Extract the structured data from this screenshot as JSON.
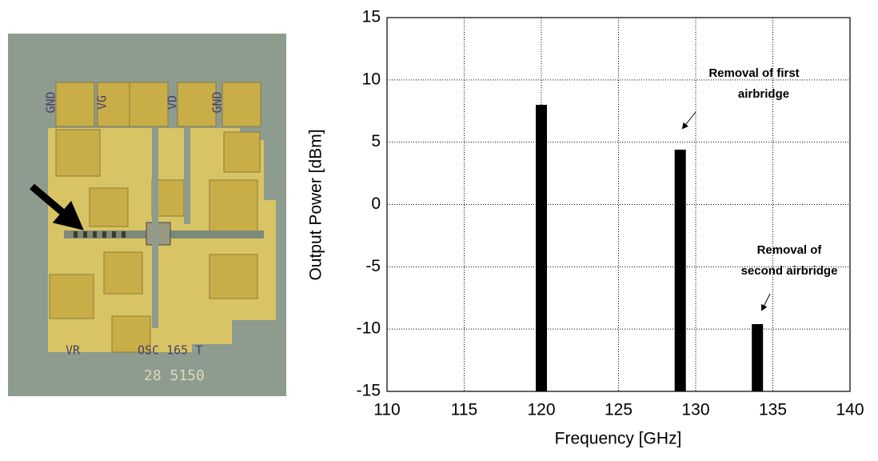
{
  "image": {
    "labels": [
      "GND",
      "VG",
      "VD",
      "GND",
      "VR",
      "OSC 165 T",
      "28 5150"
    ]
  },
  "chart_data": {
    "type": "bar",
    "x_label": "Frequency [GHz]",
    "y_label": "Output Power [dBm]",
    "x": [
      120,
      129,
      134
    ],
    "values": [
      8,
      4.4,
      -9.6
    ],
    "color": "#000000",
    "xlim": [
      110,
      140
    ],
    "xticks": [
      110,
      115,
      120,
      125,
      130,
      135,
      140
    ],
    "ylim": [
      -15,
      15
    ],
    "yticks": [
      -15,
      -10,
      -5,
      0,
      5,
      10,
      15
    ],
    "grid": true,
    "annotations": [
      [
        "Removal of first",
        "airbridge"
      ],
      [
        "Removal of",
        "second airbridge"
      ]
    ]
  }
}
